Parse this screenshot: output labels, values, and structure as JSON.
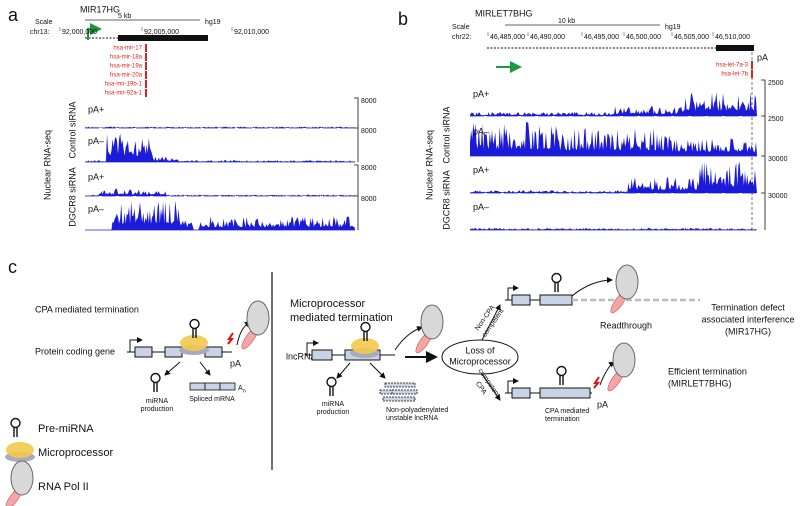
{
  "panel_a": {
    "label": "a",
    "title": "MIR17HG",
    "scale": "Scale",
    "scale_bar": "5 kb",
    "assembly": "hg19",
    "chrom": "chr13:",
    "coords": [
      "92,000,000",
      "92,005,000",
      "92,010,000"
    ],
    "mirnas": [
      "hsa-mir-17",
      "hsa-mir-18a",
      "hsa-mir-19a",
      "hsa-mir-20a",
      "hsa-mir-19b-1",
      "hsa-mir-92a-1"
    ],
    "y_axis": "Nuclear RNA-seq",
    "groups": [
      "Control siRNA",
      "DGCR8 siRNA"
    ],
    "tracks": [
      {
        "label": "pA+",
        "max": 8000
      },
      {
        "label": "pA–",
        "max": 8000
      },
      {
        "label": "pA+",
        "max": 8000
      },
      {
        "label": "pA–",
        "max": 8000
      }
    ]
  },
  "panel_b": {
    "label": "b",
    "title": "MIRLET7BHG",
    "scale": "Scale",
    "scale_bar": "10 kb",
    "assembly": "hg19",
    "chrom": "chr22:",
    "coords": [
      "46,485,000",
      "46,490,000",
      "46,495,000",
      "46,500,000",
      "46,505,000",
      "46,510,000"
    ],
    "mirnas": [
      "hsa-let-7a-3",
      "hsa-let-7b"
    ],
    "pa": "pA",
    "y_axis": "Nuclear RNA-seq",
    "groups": [
      "Control siRNA",
      "DGCR8 siRNA"
    ],
    "tracks": [
      {
        "label": "pA+",
        "max": 2500
      },
      {
        "label": "pA–",
        "max": 2500
      },
      {
        "label": "pA+",
        "max": 30000
      },
      {
        "label": "pA–",
        "max": 30000
      }
    ]
  },
  "panel_c": {
    "label": "c",
    "left": {
      "title": "CPA mediated termination",
      "gene": "Protein coding gene",
      "pa": "pA",
      "mirna": [
        "miRNA",
        "production"
      ],
      "mrna": "Spliced mRNA",
      "polya": "A",
      "polya_sub": "n"
    },
    "legend": [
      "Pre-miRNA",
      "Microprocessor",
      "RNA Pol II"
    ],
    "right": {
      "title": [
        "Microprocessor",
        "mediated termination"
      ],
      "gene": "lncRNA",
      "mirna": [
        "miRNA",
        "production"
      ],
      "unstable": [
        "Non-polyadenylated",
        "unstable lncRNA"
      ],
      "loss": [
        "Loss of",
        "Microprocessor"
      ],
      "non_cpa": [
        "Non-CPA",
        "competent"
      ],
      "cpa": [
        "CPA",
        "competent"
      ],
      "readthrough": "Readthrough",
      "defect": [
        "Termination defect",
        "associated interference",
        "(MIR17HG)"
      ],
      "cpa_term": [
        "CPA mediated",
        "termination"
      ],
      "pa": "pA",
      "efficient": [
        "Efficient termination",
        "(MIRLET7BHG)"
      ]
    }
  }
}
